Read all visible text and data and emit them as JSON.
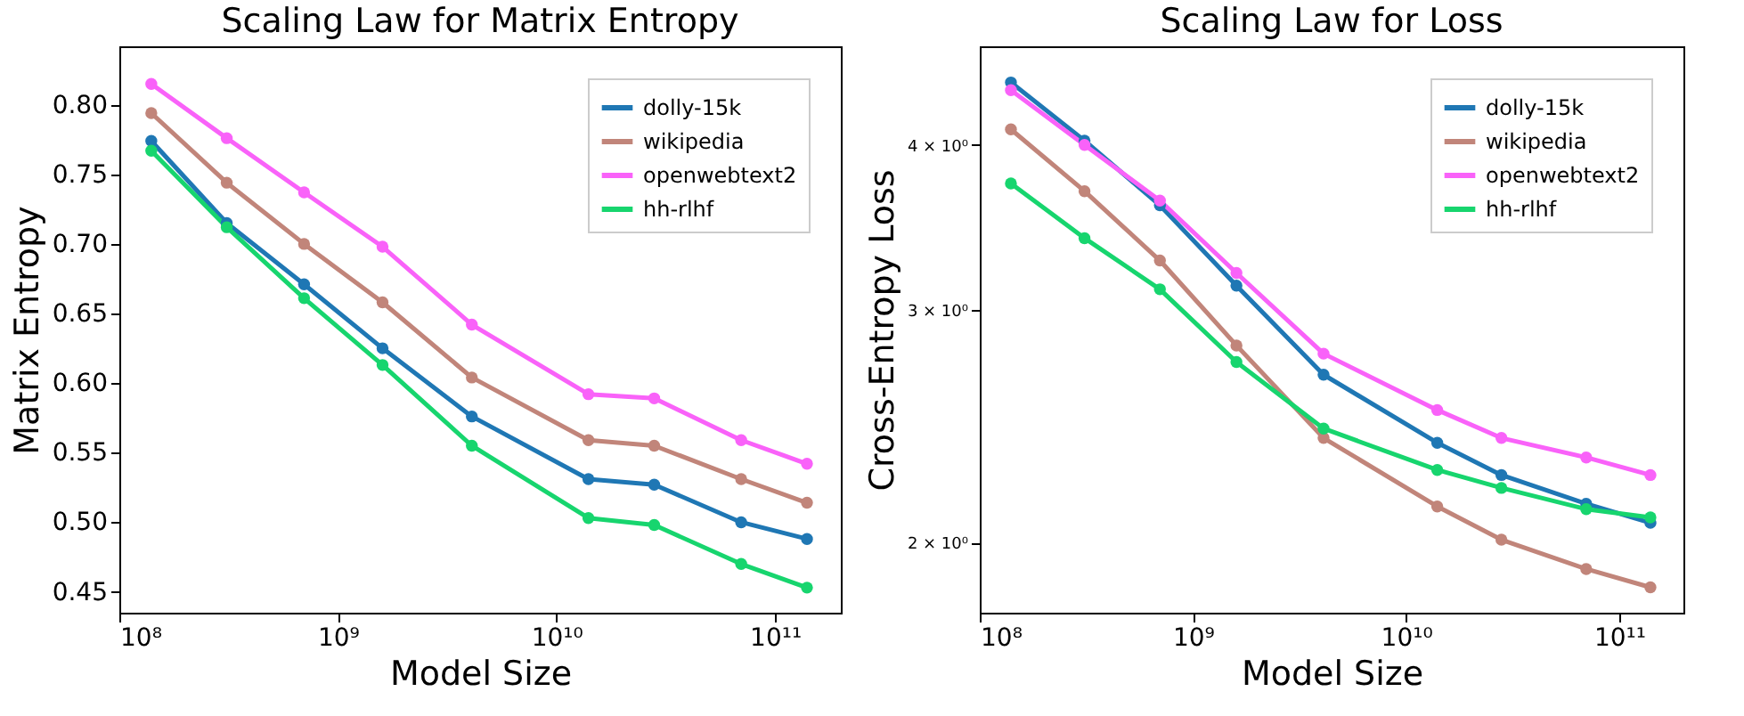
{
  "chart_data": [
    {
      "type": "line",
      "title": "Scaling Law for Matrix Entropy",
      "xlabel": "Model Size",
      "ylabel": "Matrix Entropy",
      "x": [
        140000000.0,
        310000000.0,
        700000000.0,
        1600000000.0,
        4100000000.0,
        14000000000.0,
        28000000000.0,
        70000000000.0,
        140000000000.0
      ],
      "series": [
        {
          "name": "dolly-15k",
          "color": "#1f77b4",
          "values": [
            0.774,
            0.715,
            0.671,
            0.625,
            0.576,
            0.531,
            0.527,
            0.5,
            0.488
          ]
        },
        {
          "name": "wikipedia",
          "color": "#c1857a",
          "values": [
            0.794,
            0.744,
            0.7,
            0.658,
            0.604,
            0.559,
            0.555,
            0.531,
            0.514
          ]
        },
        {
          "name": "openwebtext2",
          "color": "#f962f9",
          "values": [
            0.815,
            0.776,
            0.737,
            0.698,
            0.642,
            0.592,
            0.589,
            0.559,
            0.542
          ]
        },
        {
          "name": "hh-rlhf",
          "color": "#17d56e",
          "values": [
            0.767,
            0.712,
            0.661,
            0.613,
            0.555,
            0.503,
            0.498,
            0.47,
            0.453
          ]
        }
      ],
      "xlim": [
        100000000.0,
        200000000000.0
      ],
      "ylim": [
        0.435,
        0.842
      ],
      "xticks": [
        {
          "value": 100000000.0,
          "label": "10⁸"
        },
        {
          "value": 1000000000.0,
          "label": "10⁹"
        },
        {
          "value": 10000000000.0,
          "label": "10¹⁰"
        },
        {
          "value": 100000000000.0,
          "label": "10¹¹"
        }
      ],
      "yticks": [
        {
          "value": 0.45,
          "label": "0.45"
        },
        {
          "value": 0.5,
          "label": "0.50"
        },
        {
          "value": 0.55,
          "label": "0.55"
        },
        {
          "value": 0.6,
          "label": "0.60"
        },
        {
          "value": 0.65,
          "label": "0.65"
        },
        {
          "value": 0.7,
          "label": "0.70"
        },
        {
          "value": 0.75,
          "label": "0.75"
        },
        {
          "value": 0.8,
          "label": "0.80"
        }
      ],
      "log": "x",
      "legend": "top right",
      "marker": "circle",
      "line_style": "solid",
      "grid": false
    },
    {
      "type": "line",
      "title": "Scaling Law for Loss",
      "xlabel": "Model Size",
      "ylabel": "Cross-Entropy Loss",
      "x": [
        140000000.0,
        310000000.0,
        700000000.0,
        1600000000.0,
        4100000000.0,
        14000000000.0,
        28000000000.0,
        70000000000.0,
        140000000000.0
      ],
      "series": [
        {
          "name": "dolly-15k",
          "color": "#1f77b4",
          "values": [
            4.46,
            4.03,
            3.6,
            3.13,
            2.68,
            2.38,
            2.25,
            2.14,
            2.07
          ]
        },
        {
          "name": "wikipedia",
          "color": "#c1857a",
          "values": [
            4.11,
            3.69,
            3.27,
            2.82,
            2.4,
            2.13,
            2.01,
            1.91,
            1.85
          ]
        },
        {
          "name": "openwebtext2",
          "color": "#f962f9",
          "values": [
            4.4,
            4.0,
            3.63,
            3.2,
            2.78,
            2.52,
            2.4,
            2.32,
            2.25
          ]
        },
        {
          "name": "hh-rlhf",
          "color": "#17d56e",
          "values": [
            3.74,
            3.4,
            3.11,
            2.74,
            2.44,
            2.27,
            2.2,
            2.12,
            2.09
          ]
        }
      ],
      "xlim": [
        100000000.0,
        200000000000.0
      ],
      "ylim": [
        1.77,
        4.75
      ],
      "xticks": [
        {
          "value": 100000000.0,
          "label": "10⁸"
        },
        {
          "value": 1000000000.0,
          "label": "10⁹"
        },
        {
          "value": 10000000000.0,
          "label": "10¹⁰"
        },
        {
          "value": 100000000000.0,
          "label": "10¹¹"
        }
      ],
      "yticks": [
        {
          "value": 2,
          "label": "2 × 10⁰"
        },
        {
          "value": 3,
          "label": "3 × 10⁰"
        },
        {
          "value": 4,
          "label": "4 × 10⁰"
        }
      ],
      "log": "xy",
      "legend": "top right",
      "marker": "circle",
      "line_style": "solid",
      "grid": false
    }
  ]
}
